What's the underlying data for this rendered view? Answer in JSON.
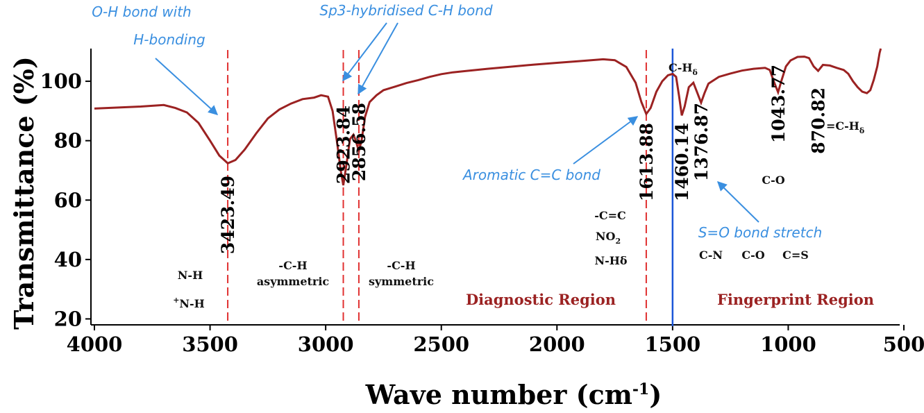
{
  "colors": {
    "spectrum": "#9b2222",
    "peak_line": "#e03030",
    "divider": "#1a55d8",
    "note": "#3a8fe0",
    "region": "#9b2222"
  },
  "chart_data": {
    "type": "line",
    "xlabel": "Wave number (cm",
    "xlabel_sup": "-1",
    "xlabel_end": ")",
    "ylabel": "Transmittance (%)",
    "xlim": [
      4000,
      500
    ],
    "x_reversed": true,
    "ylim": [
      18,
      111
    ],
    "x_ticks": [
      4000,
      3500,
      3000,
      2500,
      2000,
      1500,
      1000,
      500
    ],
    "y_ticks": [
      20,
      40,
      60,
      80,
      100
    ],
    "series": [
      {
        "values": [
          [
            4000,
            90.8
          ],
          [
            3800,
            91.5
          ],
          [
            3700,
            92.0
          ],
          [
            3650,
            91.0
          ],
          [
            3600,
            89.5
          ],
          [
            3550,
            86.0
          ],
          [
            3500,
            80.0
          ],
          [
            3460,
            75.0
          ],
          [
            3423.49,
            72.4
          ],
          [
            3390,
            73.5
          ],
          [
            3350,
            77.0
          ],
          [
            3300,
            82.5
          ],
          [
            3250,
            87.5
          ],
          [
            3200,
            90.5
          ],
          [
            3150,
            92.5
          ],
          [
            3100,
            94.0
          ],
          [
            3050,
            94.5
          ],
          [
            3020,
            95.3
          ],
          [
            2990,
            94.8
          ],
          [
            2970,
            90.0
          ],
          [
            2950,
            79.0
          ],
          [
            2935,
            70.0
          ],
          [
            2923.84,
            65.0
          ],
          [
            2910,
            72.0
          ],
          [
            2895,
            80.5
          ],
          [
            2880,
            82.0
          ],
          [
            2870,
            80.0
          ],
          [
            2856.58,
            76.5
          ],
          [
            2845,
            80.0
          ],
          [
            2830,
            88.0
          ],
          [
            2810,
            93.0
          ],
          [
            2780,
            95.3
          ],
          [
            2750,
            97.0
          ],
          [
            2700,
            98.2
          ],
          [
            2650,
            99.4
          ],
          [
            2600,
            100.4
          ],
          [
            2550,
            101.5
          ],
          [
            2500,
            102.4
          ],
          [
            2450,
            103.0
          ],
          [
            2400,
            103.4
          ],
          [
            2300,
            104.2
          ],
          [
            2200,
            104.9
          ],
          [
            2100,
            105.6
          ],
          [
            2000,
            106.2
          ],
          [
            1900,
            106.8
          ],
          [
            1800,
            107.4
          ],
          [
            1750,
            107.1
          ],
          [
            1700,
            104.8
          ],
          [
            1660,
            99.5
          ],
          [
            1635,
            93.0
          ],
          [
            1613.88,
            89.0
          ],
          [
            1595,
            91.0
          ],
          [
            1570,
            96.5
          ],
          [
            1545,
            100.0
          ],
          [
            1520,
            102.0
          ],
          [
            1500,
            102.5
          ],
          [
            1485,
            101.5
          ],
          [
            1472,
            95.0
          ],
          [
            1460.14,
            88.5
          ],
          [
            1448,
            91.5
          ],
          [
            1430,
            98.0
          ],
          [
            1410,
            99.5
          ],
          [
            1395,
            96.5
          ],
          [
            1376.87,
            92.8
          ],
          [
            1362,
            96.0
          ],
          [
            1345,
            99.2
          ],
          [
            1300,
            101.5
          ],
          [
            1250,
            102.6
          ],
          [
            1200,
            103.6
          ],
          [
            1150,
            104.2
          ],
          [
            1100,
            104.5
          ],
          [
            1080,
            103.8
          ],
          [
            1060,
            99.5
          ],
          [
            1043.77,
            96.3
          ],
          [
            1030,
            100.0
          ],
          [
            1010,
            105.0
          ],
          [
            990,
            107.0
          ],
          [
            960,
            108.2
          ],
          [
            930,
            108.3
          ],
          [
            910,
            107.8
          ],
          [
            890,
            105.0
          ],
          [
            870.82,
            103.5
          ],
          [
            850,
            105.5
          ],
          [
            820,
            105.3
          ],
          [
            790,
            104.5
          ],
          [
            760,
            103.8
          ],
          [
            740,
            102.5
          ],
          [
            720,
            100.0
          ],
          [
            700,
            98.0
          ],
          [
            680,
            96.5
          ],
          [
            660,
            96.0
          ],
          [
            645,
            97.0
          ],
          [
            630,
            100.5
          ],
          [
            615,
            105.0
          ],
          [
            605,
            109.5
          ],
          [
            600,
            111.0
          ]
        ]
      }
    ],
    "peaks": [
      3423.49,
      2923.84,
      2856.58,
      1613.88,
      1460.14,
      1376.87,
      1043.77,
      870.82
    ],
    "peak_labels": [
      "3423.49",
      "2923.84",
      "2856.58",
      "1613.88",
      "1460.14",
      "1376.87",
      "1043.77",
      "870.82"
    ],
    "divider_x": 1500,
    "regions": {
      "left": "Diagnostic Region",
      "right": "Fingerprint Region"
    },
    "notes": {
      "oh_line1": "O-H bond with",
      "oh_line2": "H-bonding",
      "sp3": "Sp3-hybridised C-H bond",
      "aromatic": "Aromatic C=C bond",
      "so": "S=O bond stretch"
    },
    "groups": {
      "nh": "N-H",
      "nh_plus_sup": "+",
      "nh_plus": "N-H",
      "ch_asym_1": "-C-H",
      "ch_asym_2": "asymmetric",
      "ch_sym_1": "-C-H",
      "ch_sym_2": "symmetric",
      "cc": "-C=C",
      "no2": "NO",
      "no2_sub": "2",
      "nhd": "N-Hδ",
      "chd": "C-H",
      "chd_sub": "δ",
      "co_mid": "C-O",
      "cn": "C-N",
      "co": "C-O",
      "cs": "C=S",
      "eq_chd": "=C-H",
      "eq_chd_sub": "δ"
    }
  }
}
